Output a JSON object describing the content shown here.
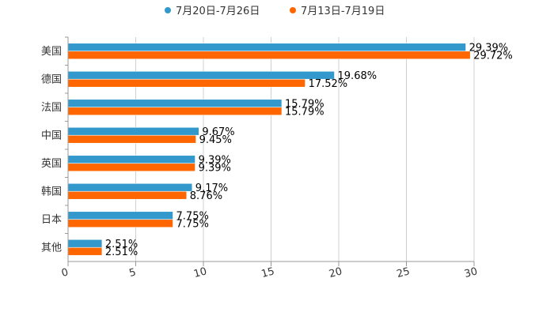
{
  "chart_data": {
    "type": "bar",
    "orientation": "horizontal",
    "title": "",
    "xlabel": "",
    "ylabel": "",
    "xlim": [
      0,
      30
    ],
    "x_ticks": [
      0,
      5,
      10,
      15,
      20,
      25,
      30
    ],
    "grid": true,
    "legend_position": "top-center",
    "categories": [
      "美国",
      "德国",
      "法国",
      "中国",
      "英国",
      "韩国",
      "日本",
      "其他"
    ],
    "series": [
      {
        "name": "7月20日-7月26日",
        "color": "#3399CC",
        "values": [
          29.39,
          19.68,
          15.79,
          9.67,
          9.39,
          9.17,
          7.75,
          2.51
        ],
        "labels": [
          "29.39%",
          "19.68%",
          "15.79%",
          "9.67%",
          "9.39%",
          "9.17%",
          "7.75%",
          "2.51%"
        ]
      },
      {
        "name": "7月13日-7月19日",
        "color": "#FF6600",
        "values": [
          29.72,
          17.52,
          15.79,
          9.45,
          9.39,
          8.76,
          7.75,
          2.51
        ],
        "labels": [
          "29.72%",
          "17.52%",
          "15.79%",
          "9.45%",
          "9.39%",
          "8.76%",
          "7.75%",
          "2.51%"
        ]
      }
    ]
  }
}
